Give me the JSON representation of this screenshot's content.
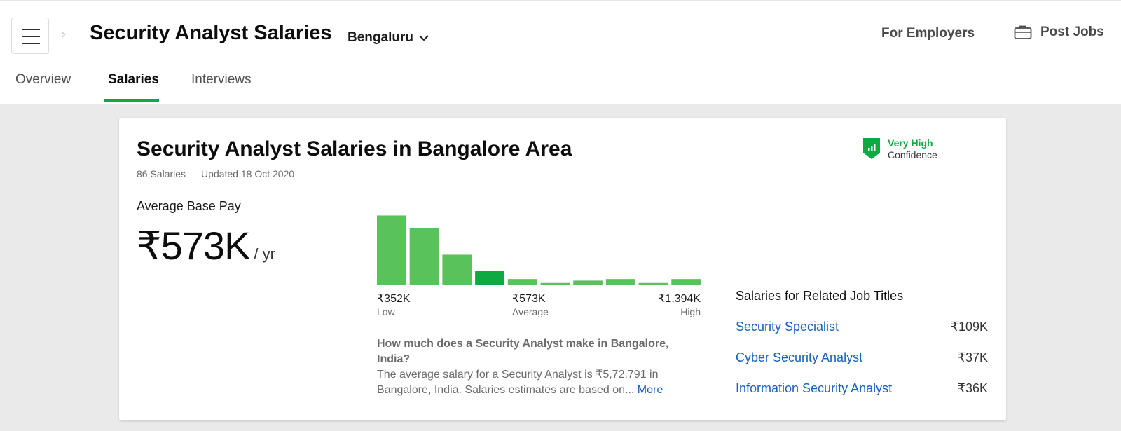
{
  "header": {
    "title": "Security Analyst Salaries",
    "location": "Bengaluru",
    "for_employers": "For Employers",
    "post_jobs": "Post Jobs"
  },
  "tabs": [
    {
      "label": "Overview",
      "active": false
    },
    {
      "label": "Salaries",
      "active": true
    },
    {
      "label": "Interviews",
      "active": false
    }
  ],
  "card": {
    "title": "Security Analyst Salaries in Bangalore Area",
    "salaries_count": "86 Salaries",
    "updated": "Updated 18 Oct 2020",
    "confidence_level": "Very High",
    "confidence_label": "Confidence",
    "avg_label": "Average Base Pay",
    "avg_amount": "₹573K",
    "avg_unit": "/ yr"
  },
  "histogram": {
    "heights": [
      0.88,
      0.72,
      0.38,
      0.17,
      0.07,
      0.02,
      0.05,
      0.07,
      0.02,
      0.07
    ],
    "highlight_index": 3,
    "color": "#5ac25a",
    "highlight_color": "#0caa41",
    "low_value": "₹352K",
    "low_label": "Low",
    "avg_value": "₹573K",
    "avg_label": "Average",
    "high_value": "₹1,394K",
    "high_label": "High"
  },
  "description": {
    "question": "How much does a Security Analyst make in Bangalore, India?",
    "answer": "The average salary for a Security Analyst is ₹5,72,791 in Bangalore, India. Salaries estimates are based on...",
    "more": "More"
  },
  "related": {
    "title": "Salaries for Related Job Titles",
    "items": [
      {
        "name": "Security Specialist",
        "value": "₹109K"
      },
      {
        "name": "Cyber Security Analyst",
        "value": "₹37K"
      },
      {
        "name": "Information Security Analyst",
        "value": "₹36K"
      }
    ]
  },
  "colors": {
    "accent": "#0caa41",
    "link": "#1861bf"
  }
}
